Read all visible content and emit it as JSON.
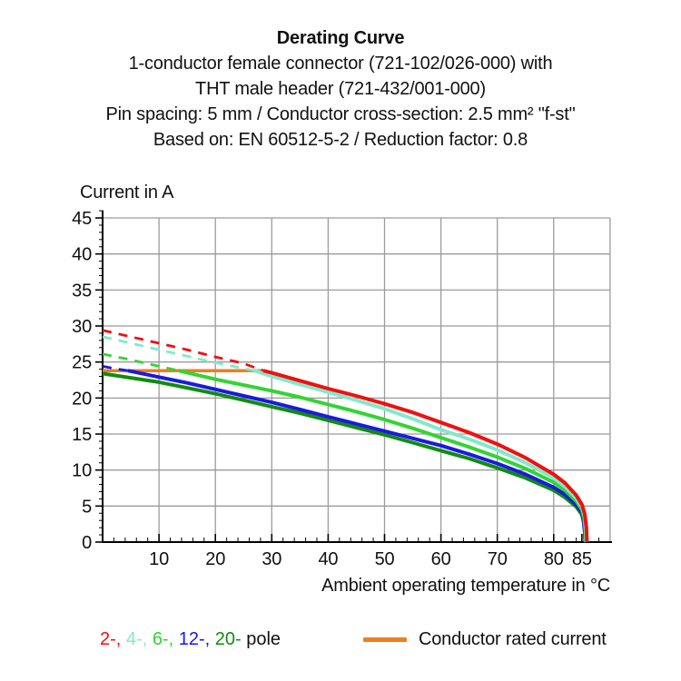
{
  "header": {
    "title": "Derating Curve",
    "subtitle_lines": [
      "1-conductor female connector (721-102/026-000) with",
      "THT male header (721-432/001-000)",
      "Pin spacing: 5 mm / Conductor cross-section: 2.5 mm² \"f-st\"",
      "Based on: EN 60512-5-2 / Reduction factor: 0.8"
    ]
  },
  "chart_data": {
    "type": "line",
    "title": "Derating Curve",
    "xlabel": "Ambient operating temperature in °C",
    "ylabel": "Current in A",
    "xlim": [
      0,
      90
    ],
    "ylim": [
      0,
      45
    ],
    "xticks_labeled": [
      10,
      20,
      30,
      40,
      50,
      60,
      70,
      80,
      85
    ],
    "yticks_labeled": [
      0,
      5,
      10,
      15,
      20,
      25,
      30,
      35,
      40,
      45
    ],
    "x_minor_step": 2,
    "y_minor_step": 1,
    "grid": {
      "x_step": 10,
      "y_step": 5,
      "color": "#9b9b9b",
      "on": true
    },
    "axis_color": "#000000",
    "conductor_rated_current": {
      "value": 23.8,
      "span": [
        0,
        28.5
      ],
      "color": "#f07d1e",
      "label": "Conductor rated current"
    },
    "dash_note": "dashed_points show theoretical current above the conductor rated current limit",
    "series": [
      {
        "name": "2-pole",
        "color": "#ef1010",
        "dashed_points": [
          [
            0,
            29.4
          ],
          [
            5,
            28.5
          ],
          [
            10,
            27.6
          ],
          [
            15,
            26.7
          ],
          [
            20,
            25.7
          ],
          [
            25,
            24.8
          ],
          [
            28.5,
            23.8
          ]
        ],
        "solid_points": [
          [
            28.5,
            23.8
          ],
          [
            30,
            23.5
          ],
          [
            35,
            22.4
          ],
          [
            40,
            21.3
          ],
          [
            45,
            20.3
          ],
          [
            50,
            19.2
          ],
          [
            55,
            18.0
          ],
          [
            60,
            16.6
          ],
          [
            65,
            15.2
          ],
          [
            70,
            13.6
          ],
          [
            75,
            11.7
          ],
          [
            80,
            9.4
          ],
          [
            82,
            8.2
          ],
          [
            84,
            6.5
          ],
          [
            85,
            5.2
          ],
          [
            85.5,
            3.9
          ],
          [
            85.8,
            2.0
          ],
          [
            85.9,
            0
          ]
        ]
      },
      {
        "name": "4-pole",
        "color": "#82e9ca",
        "dashed_points": [
          [
            0,
            28.5
          ],
          [
            5,
            27.6
          ],
          [
            10,
            26.7
          ],
          [
            15,
            25.8
          ],
          [
            20,
            24.9
          ],
          [
            25,
            24.1
          ],
          [
            27,
            23.8
          ]
        ],
        "solid_points": [
          [
            27,
            23.8
          ],
          [
            30,
            23.0
          ],
          [
            35,
            21.9
          ],
          [
            40,
            20.8
          ],
          [
            45,
            19.7
          ],
          [
            50,
            18.5
          ],
          [
            55,
            17.1
          ],
          [
            60,
            15.6
          ],
          [
            65,
            14.3
          ],
          [
            70,
            12.8
          ],
          [
            75,
            11.0
          ],
          [
            80,
            8.9
          ],
          [
            82,
            7.7
          ],
          [
            84,
            6.1
          ],
          [
            85,
            4.9
          ],
          [
            85.5,
            3.6
          ],
          [
            85.7,
            1.8
          ],
          [
            85.8,
            0
          ]
        ]
      },
      {
        "name": "6-pole",
        "color": "#33d433",
        "dashed_points": [
          [
            0,
            26.1
          ],
          [
            5,
            25.3
          ],
          [
            10,
            24.4
          ],
          [
            13.5,
            23.8
          ]
        ],
        "solid_points": [
          [
            13.5,
            23.8
          ],
          [
            20,
            22.6
          ],
          [
            25,
            21.8
          ],
          [
            30,
            21.0
          ],
          [
            35,
            20.1
          ],
          [
            40,
            19.1
          ],
          [
            45,
            18.1
          ],
          [
            50,
            17.0
          ],
          [
            55,
            15.8
          ],
          [
            60,
            14.5
          ],
          [
            65,
            13.2
          ],
          [
            70,
            11.8
          ],
          [
            75,
            10.2
          ],
          [
            80,
            8.3
          ],
          [
            82,
            7.2
          ],
          [
            84,
            5.7
          ],
          [
            85,
            4.5
          ],
          [
            85.4,
            3.3
          ],
          [
            85.6,
            1.6
          ],
          [
            85.7,
            0
          ]
        ]
      },
      {
        "name": "12-pole",
        "color": "#1a1adf",
        "dashed_points": [
          [
            0,
            24.4
          ],
          [
            2,
            24.1
          ],
          [
            4.5,
            23.8
          ]
        ],
        "solid_points": [
          [
            4.5,
            23.8
          ],
          [
            10,
            22.9
          ],
          [
            15,
            22.1
          ],
          [
            20,
            21.2
          ],
          [
            25,
            20.3
          ],
          [
            30,
            19.4
          ],
          [
            35,
            18.4
          ],
          [
            40,
            17.4
          ],
          [
            45,
            16.4
          ],
          [
            50,
            15.4
          ],
          [
            55,
            14.4
          ],
          [
            60,
            13.4
          ],
          [
            65,
            12.2
          ],
          [
            70,
            10.9
          ],
          [
            75,
            9.4
          ],
          [
            80,
            7.6
          ],
          [
            82,
            6.6
          ],
          [
            84,
            5.2
          ],
          [
            85,
            4.1
          ],
          [
            85.3,
            3.0
          ],
          [
            85.5,
            1.5
          ],
          [
            85.6,
            0
          ]
        ]
      },
      {
        "name": "20-pole",
        "color": "#108c10",
        "dashed_points": [],
        "solid_points": [
          [
            0,
            23.4
          ],
          [
            5,
            22.8
          ],
          [
            10,
            22.2
          ],
          [
            15,
            21.4
          ],
          [
            20,
            20.6
          ],
          [
            25,
            19.7
          ],
          [
            30,
            18.8
          ],
          [
            35,
            17.9
          ],
          [
            40,
            16.9
          ],
          [
            45,
            15.9
          ],
          [
            50,
            14.9
          ],
          [
            55,
            13.8
          ],
          [
            60,
            12.7
          ],
          [
            65,
            11.6
          ],
          [
            70,
            10.3
          ],
          [
            75,
            8.9
          ],
          [
            80,
            7.2
          ],
          [
            82,
            6.2
          ],
          [
            84,
            4.9
          ],
          [
            85,
            3.8
          ],
          [
            85.3,
            2.8
          ],
          [
            85.5,
            1.3
          ],
          [
            85.6,
            0
          ]
        ]
      }
    ],
    "legend_position": "bottom"
  },
  "legend": {
    "pole_items": [
      {
        "label": "2-,",
        "color": "#ef1010"
      },
      {
        "label": "4-,",
        "color": "#82e9ca"
      },
      {
        "label": "6-,",
        "color": "#33d433"
      },
      {
        "label": "12-,",
        "color": "#1a1adf"
      },
      {
        "label": "20-",
        "color": "#108c10"
      }
    ],
    "pole_suffix": "pole",
    "rated_label": "Conductor rated current"
  }
}
